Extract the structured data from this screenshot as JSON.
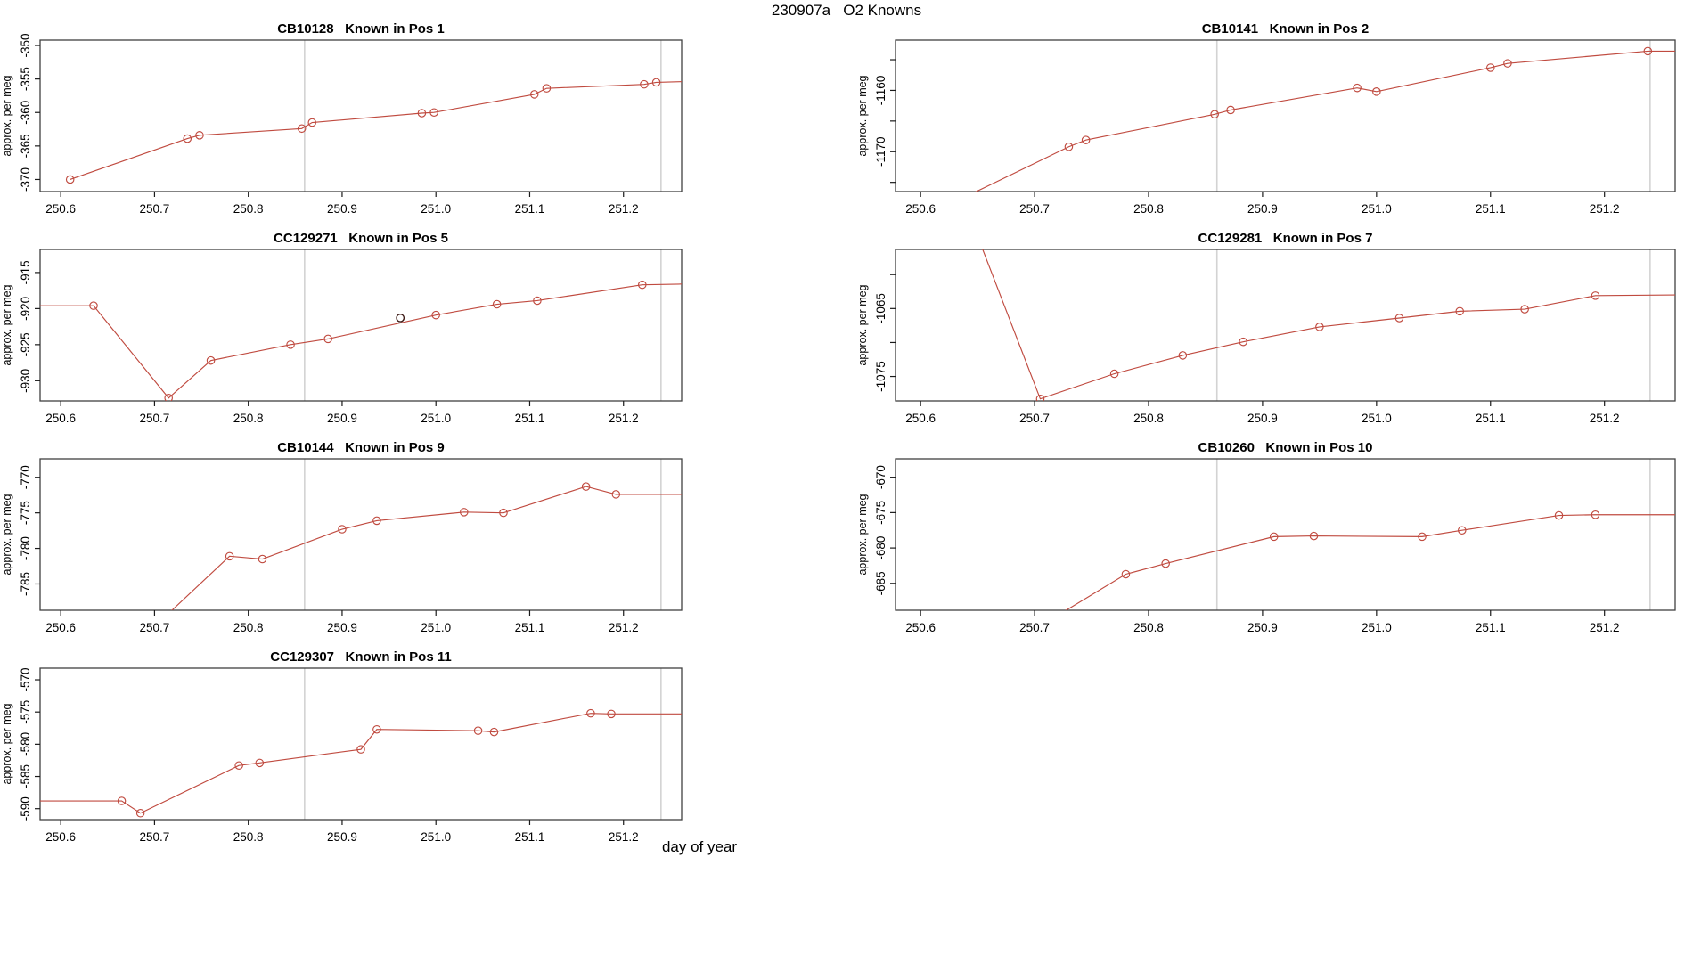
{
  "page": {
    "title": "230907a   O2 Knowns",
    "xlabel": "day of year"
  },
  "style": {
    "line_color": "#c04b40",
    "outlier_color": "#3c1a16",
    "guide_color": "#d3d3d3",
    "box_color": "#404040",
    "tick_color": "#1a1a1a",
    "text_color": "#000000"
  },
  "chart_data": [
    {
      "type": "line",
      "title": "CB10128   Known in Pos 1",
      "ylabel": "approx. per meg",
      "row": 0,
      "col": 0,
      "xlim": [
        250.578,
        251.262
      ],
      "ylim": [
        -371.8,
        -349.2
      ],
      "x_ticks": [
        {
          "v": 250.6,
          "label": "250.6"
        },
        {
          "v": 250.7,
          "label": "250.7"
        },
        {
          "v": 250.8,
          "label": "250.8"
        },
        {
          "v": 250.9,
          "label": "250.9"
        },
        {
          "v": 251.0,
          "label": "251.0"
        },
        {
          "v": 251.1,
          "label": "251.1"
        },
        {
          "v": 251.2,
          "label": "251.2"
        }
      ],
      "y_ticks": [
        {
          "v": -350,
          "label": "-350"
        },
        {
          "v": -355,
          "label": "-355"
        },
        {
          "v": -360,
          "label": "-360"
        },
        {
          "v": -365,
          "label": "-365"
        },
        {
          "v": -370,
          "label": "-370"
        }
      ],
      "guides": [
        250.86,
        251.24
      ],
      "points": [
        [
          250.61,
          -370.0,
          1
        ],
        [
          250.735,
          -363.9,
          1
        ],
        [
          250.748,
          -363.4,
          1
        ],
        [
          250.857,
          -362.4,
          1
        ],
        [
          250.868,
          -361.5,
          1
        ],
        [
          250.985,
          -360.1,
          1
        ],
        [
          250.998,
          -360.0,
          1
        ],
        [
          251.105,
          -357.3,
          1
        ],
        [
          251.118,
          -356.4,
          1
        ],
        [
          251.222,
          -355.8,
          1
        ],
        [
          251.235,
          -355.5,
          1
        ],
        [
          251.262,
          -355.4,
          0
        ]
      ]
    },
    {
      "type": "line",
      "title": "CB10141   Known in Pos 2",
      "ylabel": "approx. per meg",
      "row": 0,
      "col": 1,
      "xlim": [
        250.578,
        251.262
      ],
      "ylim": [
        -1176.5,
        -1151.8
      ],
      "x_ticks": [
        {
          "v": 250.6,
          "label": "250.6"
        },
        {
          "v": 250.7,
          "label": "250.7"
        },
        {
          "v": 250.8,
          "label": "250.8"
        },
        {
          "v": 250.9,
          "label": "250.9"
        },
        {
          "v": 251.0,
          "label": "251.0"
        },
        {
          "v": 251.1,
          "label": "251.1"
        },
        {
          "v": 251.2,
          "label": "251.2"
        }
      ],
      "y_ticks": [
        {
          "v": -1155,
          "label": ""
        },
        {
          "v": -1160,
          "label": "-1160"
        },
        {
          "v": -1165,
          "label": ""
        },
        {
          "v": -1170,
          "label": "-1170"
        },
        {
          "v": -1175,
          "label": ""
        }
      ],
      "guides": [
        250.86,
        251.24
      ],
      "points": [
        [
          250.61,
          -1180.0,
          0
        ],
        [
          250.73,
          -1169.2,
          1
        ],
        [
          250.745,
          -1168.1,
          1
        ],
        [
          250.858,
          -1163.9,
          1
        ],
        [
          250.872,
          -1163.2,
          1
        ],
        [
          250.983,
          -1159.6,
          1
        ],
        [
          251.0,
          -1160.2,
          1
        ],
        [
          251.1,
          -1156.3,
          1
        ],
        [
          251.115,
          -1155.6,
          1
        ],
        [
          251.238,
          -1153.6,
          1
        ],
        [
          251.262,
          -1153.6,
          0
        ]
      ]
    },
    {
      "type": "line",
      "title": "CC129271   Known in Pos 5",
      "ylabel": "approx. per meg",
      "row": 1,
      "col": 0,
      "xlim": [
        250.578,
        251.262
      ],
      "ylim": [
        -932.8,
        -911.8
      ],
      "x_ticks": [
        {
          "v": 250.6,
          "label": "250.6"
        },
        {
          "v": 250.7,
          "label": "250.7"
        },
        {
          "v": 250.8,
          "label": "250.8"
        },
        {
          "v": 250.9,
          "label": "250.9"
        },
        {
          "v": 251.0,
          "label": "251.0"
        },
        {
          "v": 251.1,
          "label": "251.1"
        },
        {
          "v": 251.2,
          "label": "251.2"
        }
      ],
      "y_ticks": [
        {
          "v": -915,
          "label": "-915"
        },
        {
          "v": -920,
          "label": "-920"
        },
        {
          "v": -925,
          "label": "-925"
        },
        {
          "v": -930,
          "label": "-930"
        }
      ],
      "guides": [
        250.86,
        251.24
      ],
      "points": [
        [
          250.578,
          -919.6,
          0
        ],
        [
          250.635,
          -919.6,
          1
        ],
        [
          250.715,
          -932.4,
          1
        ],
        [
          250.76,
          -927.2,
          1
        ],
        [
          250.845,
          -925.0,
          1
        ],
        [
          250.885,
          -924.2,
          1
        ],
        [
          251.0,
          -920.9,
          1
        ],
        [
          251.065,
          -919.4,
          1
        ],
        [
          251.108,
          -918.9,
          1
        ],
        [
          251.22,
          -916.7,
          1
        ],
        [
          251.262,
          -916.6,
          0
        ]
      ],
      "outlier": {
        "x": 250.962,
        "y": -921.3
      }
    },
    {
      "type": "line",
      "title": "CC129281   Known in Pos 7",
      "ylabel": "approx. per meg",
      "row": 1,
      "col": 1,
      "xlim": [
        250.578,
        251.262
      ],
      "ylim": [
        -1078.6,
        -1056.3
      ],
      "x_ticks": [
        {
          "v": 250.6,
          "label": "250.6"
        },
        {
          "v": 250.7,
          "label": "250.7"
        },
        {
          "v": 250.8,
          "label": "250.8"
        },
        {
          "v": 250.9,
          "label": "250.9"
        },
        {
          "v": 251.0,
          "label": "251.0"
        },
        {
          "v": 251.1,
          "label": "251.1"
        },
        {
          "v": 251.2,
          "label": "251.2"
        }
      ],
      "y_ticks": [
        {
          "v": -1060,
          "label": ""
        },
        {
          "v": -1065,
          "label": "-1065"
        },
        {
          "v": -1070,
          "label": ""
        },
        {
          "v": -1075,
          "label": "-1075"
        }
      ],
      "guides": [
        250.86,
        251.24
      ],
      "points": [
        [
          250.64,
          -1050.0,
          0
        ],
        [
          250.705,
          -1078.3,
          1
        ],
        [
          250.77,
          -1074.6,
          1
        ],
        [
          250.83,
          -1071.9,
          1
        ],
        [
          250.883,
          -1069.9,
          1
        ],
        [
          250.95,
          -1067.7,
          1
        ],
        [
          251.02,
          -1066.4,
          1
        ],
        [
          251.073,
          -1065.4,
          1
        ],
        [
          251.13,
          -1065.1,
          1
        ],
        [
          251.192,
          -1063.1,
          1
        ],
        [
          251.262,
          -1063.0,
          0
        ]
      ]
    },
    {
      "type": "line",
      "title": "CB10144   Known in Pos 9",
      "ylabel": "approx. per meg",
      "row": 2,
      "col": 0,
      "xlim": [
        250.578,
        251.262
      ],
      "ylim": [
        -788.7,
        -767.4
      ],
      "x_ticks": [
        {
          "v": 250.6,
          "label": "250.6"
        },
        {
          "v": 250.7,
          "label": "250.7"
        },
        {
          "v": 250.8,
          "label": "250.8"
        },
        {
          "v": 250.9,
          "label": "250.9"
        },
        {
          "v": 251.0,
          "label": "251.0"
        },
        {
          "v": 251.1,
          "label": "251.1"
        },
        {
          "v": 251.2,
          "label": "251.2"
        }
      ],
      "y_ticks": [
        {
          "v": -770,
          "label": "-770"
        },
        {
          "v": -775,
          "label": "-775"
        },
        {
          "v": -780,
          "label": "-780"
        },
        {
          "v": -785,
          "label": "-785"
        }
      ],
      "guides": [
        250.86,
        251.24
      ],
      "points": [
        [
          250.7,
          -791.0,
          0
        ],
        [
          250.78,
          -781.1,
          1
        ],
        [
          250.815,
          -781.5,
          1
        ],
        [
          250.9,
          -777.3,
          1
        ],
        [
          250.937,
          -776.1,
          1
        ],
        [
          251.03,
          -774.9,
          1
        ],
        [
          251.072,
          -775.0,
          1
        ],
        [
          251.16,
          -771.3,
          1
        ],
        [
          251.192,
          -772.4,
          1
        ],
        [
          251.262,
          -772.4,
          0
        ]
      ]
    },
    {
      "type": "line",
      "title": "CB10260   Known in Pos 10",
      "ylabel": "approx. per meg",
      "row": 2,
      "col": 1,
      "xlim": [
        250.578,
        251.262
      ],
      "ylim": [
        -688.8,
        -667.4
      ],
      "x_ticks": [
        {
          "v": 250.6,
          "label": "250.6"
        },
        {
          "v": 250.7,
          "label": "250.7"
        },
        {
          "v": 250.8,
          "label": "250.8"
        },
        {
          "v": 250.9,
          "label": "250.9"
        },
        {
          "v": 251.0,
          "label": "251.0"
        },
        {
          "v": 251.1,
          "label": "251.1"
        },
        {
          "v": 251.2,
          "label": "251.2"
        }
      ],
      "y_ticks": [
        {
          "v": -670,
          "label": "-670"
        },
        {
          "v": -675,
          "label": "-675"
        },
        {
          "v": -680,
          "label": "-680"
        },
        {
          "v": -685,
          "label": "-685"
        }
      ],
      "guides": [
        250.86,
        251.24
      ],
      "points": [
        [
          250.7,
          -691.5,
          0
        ],
        [
          250.78,
          -683.7,
          1
        ],
        [
          250.815,
          -682.2,
          1
        ],
        [
          250.91,
          -678.4,
          1
        ],
        [
          250.945,
          -678.3,
          1
        ],
        [
          251.04,
          -678.4,
          1
        ],
        [
          251.075,
          -677.5,
          1
        ],
        [
          251.16,
          -675.4,
          1
        ],
        [
          251.192,
          -675.3,
          1
        ],
        [
          251.262,
          -675.3,
          0
        ]
      ]
    },
    {
      "type": "line",
      "title": "CC129307   Known in Pos 11",
      "ylabel": "approx. per meg",
      "row": 3,
      "col": 0,
      "xlim": [
        250.578,
        251.262
      ],
      "ylim": [
        -591.7,
        -568.2
      ],
      "x_ticks": [
        {
          "v": 250.6,
          "label": "250.6"
        },
        {
          "v": 250.7,
          "label": "250.7"
        },
        {
          "v": 250.8,
          "label": "250.8"
        },
        {
          "v": 250.9,
          "label": "250.9"
        },
        {
          "v": 251.0,
          "label": "251.0"
        },
        {
          "v": 251.1,
          "label": "251.1"
        },
        {
          "v": 251.2,
          "label": "251.2"
        }
      ],
      "y_ticks": [
        {
          "v": -570,
          "label": "-570"
        },
        {
          "v": -575,
          "label": "-575"
        },
        {
          "v": -580,
          "label": "-580"
        },
        {
          "v": -585,
          "label": "-585"
        },
        {
          "v": -590,
          "label": "-590"
        }
      ],
      "guides": [
        250.86,
        251.24
      ],
      "points": [
        [
          250.578,
          -588.8,
          0
        ],
        [
          250.665,
          -588.8,
          1
        ],
        [
          250.685,
          -590.7,
          1
        ],
        [
          250.79,
          -583.3,
          1
        ],
        [
          250.812,
          -582.9,
          1
        ],
        [
          250.92,
          -580.8,
          1
        ],
        [
          250.937,
          -577.7,
          1
        ],
        [
          251.045,
          -577.9,
          1
        ],
        [
          251.062,
          -578.1,
          1
        ],
        [
          251.165,
          -575.2,
          1
        ],
        [
          251.187,
          -575.3,
          1
        ],
        [
          251.262,
          -575.3,
          0
        ]
      ]
    }
  ]
}
